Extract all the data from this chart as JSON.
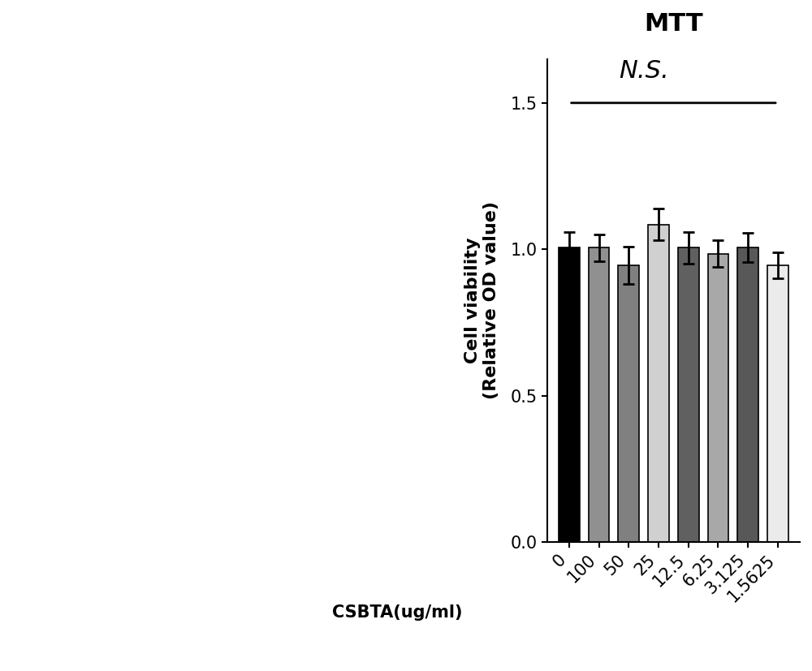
{
  "title": "MTT",
  "ylabel": "Cell viability\n(Relative OD value)",
  "xlabel_prefix": "CSBTA(ug/ml)",
  "categories": [
    "0",
    "100",
    "50",
    "25",
    "12.5",
    "6.25",
    "3.125",
    "1.5625"
  ],
  "values": [
    1.005,
    1.005,
    0.945,
    1.085,
    1.005,
    0.985,
    1.005,
    0.945
  ],
  "errors": [
    0.055,
    0.045,
    0.065,
    0.055,
    0.055,
    0.045,
    0.05,
    0.045
  ],
  "bar_colors": [
    "#000000",
    "#909090",
    "#808080",
    "#d0d0d0",
    "#606060",
    "#a8a8a8",
    "#585858",
    "#ebebeb"
  ],
  "bar_edge_colors": [
    "#000000",
    "#000000",
    "#000000",
    "#000000",
    "#000000",
    "#000000",
    "#000000",
    "#000000"
  ],
  "ylim": [
    0,
    1.65
  ],
  "yticks": [
    0.0,
    0.5,
    1.0,
    1.5
  ],
  "ns_text": "N.S.",
  "background_color": "#ffffff",
  "title_fontsize": 22,
  "axis_label_fontsize": 16,
  "tick_fontsize": 15,
  "ns_fontsize": 22,
  "bar_width": 0.7
}
